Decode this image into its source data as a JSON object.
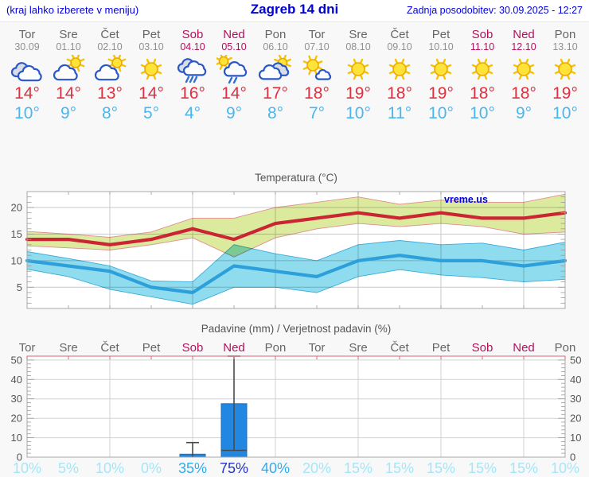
{
  "header": {
    "left_note": "(kraj lahko izberete v meniju)",
    "title": "Zagreb 14 dni",
    "updated": "Zadnja posodobitev: 30.09.2025 - 12:27"
  },
  "colors": {
    "header_blue": "#0000dd",
    "weekend_crimson": "#b0125c",
    "day_gray": "#666666",
    "date_gray": "#909090",
    "tmax_red": "#e22e3e",
    "tmin_blue": "#4ab6ee",
    "axis_text": "#555555",
    "plot_border": "#a8a8a8",
    "grid": "#c9c9c9",
    "precip_grid": "#d2d2d2",
    "precip_top_border": "#e2808e",
    "bar_fill": "#2287e0",
    "bar_edge": "#1a6dc2",
    "whisker": "#4a4a4a",
    "prob_low": "#a3e6f8",
    "prob_medium": "#2fadf0",
    "prob_high": "#2433c8",
    "watermark_blue": "#0000dd"
  },
  "days": [
    {
      "name": "Tor",
      "date": "30.09",
      "weekend": false,
      "icon": "cloudy",
      "tmax": "14°",
      "tmin": "10°",
      "precip_prob": "10%",
      "prob_level": "low"
    },
    {
      "name": "Sre",
      "date": "01.10",
      "weekend": false,
      "icon": "partly-cloudy",
      "tmax": "14°",
      "tmin": "9°",
      "precip_prob": "5%",
      "prob_level": "low"
    },
    {
      "name": "Čet",
      "date": "02.10",
      "weekend": false,
      "icon": "partly-cloudy",
      "tmax": "13°",
      "tmin": "8°",
      "precip_prob": "10%",
      "prob_level": "low"
    },
    {
      "name": "Pet",
      "date": "03.10",
      "weekend": false,
      "icon": "sunny",
      "tmax": "14°",
      "tmin": "5°",
      "precip_prob": "0%",
      "prob_level": "low"
    },
    {
      "name": "Sob",
      "date": "04.10",
      "weekend": true,
      "icon": "rain",
      "tmax": "16°",
      "tmin": "4°",
      "precip_prob": "35%",
      "prob_level": "medium"
    },
    {
      "name": "Ned",
      "date": "05.10",
      "weekend": true,
      "icon": "sun-rain",
      "tmax": "14°",
      "tmin": "9°",
      "precip_prob": "75%",
      "prob_level": "high"
    },
    {
      "name": "Pon",
      "date": "06.10",
      "weekend": false,
      "icon": "cloud-sun",
      "tmax": "17°",
      "tmin": "8°",
      "precip_prob": "40%",
      "prob_level": "medium"
    },
    {
      "name": "Tor",
      "date": "07.10",
      "weekend": false,
      "icon": "mostly-sunny",
      "tmax": "18°",
      "tmin": "7°",
      "precip_prob": "20%",
      "prob_level": "low"
    },
    {
      "name": "Sre",
      "date": "08.10",
      "weekend": false,
      "icon": "sunny",
      "tmax": "19°",
      "tmin": "10°",
      "precip_prob": "15%",
      "prob_level": "low"
    },
    {
      "name": "Čet",
      "date": "09.10",
      "weekend": false,
      "icon": "sunny",
      "tmax": "18°",
      "tmin": "11°",
      "precip_prob": "15%",
      "prob_level": "low"
    },
    {
      "name": "Pet",
      "date": "10.10",
      "weekend": false,
      "icon": "sunny",
      "tmax": "19°",
      "tmin": "10°",
      "precip_prob": "15%",
      "prob_level": "low"
    },
    {
      "name": "Sob",
      "date": "11.10",
      "weekend": true,
      "icon": "sunny",
      "tmax": "18°",
      "tmin": "10°",
      "precip_prob": "15%",
      "prob_level": "low"
    },
    {
      "name": "Ned",
      "date": "12.10",
      "weekend": true,
      "icon": "sunny",
      "tmax": "18°",
      "tmin": "9°",
      "precip_prob": "15%",
      "prob_level": "low"
    },
    {
      "name": "Pon",
      "date": "13.10",
      "weekend": false,
      "icon": "sunny",
      "tmax": "19°",
      "tmin": "10°",
      "precip_prob": "10%",
      "prob_level": "low"
    }
  ],
  "chart_data": [
    {
      "type": "line",
      "title": "Temperatura (°C)",
      "watermark": "vreme.us",
      "x_labels": [
        "Tor",
        "Sre",
        "Čet",
        "Pet",
        "Sob",
        "Ned",
        "Pon",
        "Tor",
        "Sre",
        "Čet",
        "Pet",
        "Sob",
        "Ned",
        "Pon"
      ],
      "ylim": [
        1,
        23
      ],
      "yticks": [
        5,
        10,
        15,
        20
      ],
      "grid": true,
      "series": [
        {
          "name": "max-temperature",
          "color": "#cb2433",
          "values": [
            14,
            14,
            13,
            14,
            16,
            14,
            17,
            18,
            19,
            18,
            19,
            18,
            18,
            19
          ]
        },
        {
          "name": "min-temperature",
          "color": "#2da0dc",
          "values": [
            10,
            9,
            8,
            5,
            4,
            9,
            8,
            7,
            10,
            11,
            10,
            10,
            9,
            10
          ]
        }
      ],
      "bands": [
        {
          "name": "max-range",
          "color": "#dcea9e",
          "edge": "#e08f8f",
          "upper": [
            15.5,
            15,
            14.4,
            15.4,
            18,
            18,
            20,
            21,
            22,
            20.6,
            21.4,
            21,
            21,
            22.5
          ],
          "lower": [
            12.8,
            12.4,
            12,
            13,
            14.3,
            10.7,
            14.3,
            16,
            17,
            16.4,
            17,
            16.4,
            15,
            15.4
          ]
        },
        {
          "name": "min-range",
          "color": "#8fdcee",
          "edge": "#3aabdd",
          "upper": [
            11.7,
            10.4,
            9,
            6.2,
            6,
            13,
            11.3,
            10,
            13,
            13.8,
            13,
            13.3,
            12,
            13.5
          ],
          "lower": [
            8.4,
            7,
            4.6,
            3.2,
            1.8,
            5,
            5,
            4,
            7,
            8.3,
            7.3,
            6.8,
            6,
            6.5
          ]
        }
      ]
    },
    {
      "type": "bar",
      "title": "Padavine (mm) / Verjetnost padavin (%)",
      "categories": [
        "Tor",
        "Sre",
        "Čet",
        "Pet",
        "Sob",
        "Ned",
        "Pon",
        "Tor",
        "Sre",
        "Čet",
        "Pet",
        "Sob",
        "Ned",
        "Pon"
      ],
      "values": [
        0,
        0,
        0,
        0,
        1.5,
        27.5,
        0,
        0,
        0,
        0,
        0,
        0,
        0,
        0
      ],
      "range_low": [
        null,
        null,
        null,
        null,
        null,
        3.5,
        null,
        null,
        null,
        null,
        null,
        null,
        null,
        null
      ],
      "range_high": [
        null,
        null,
        null,
        null,
        7.5,
        52,
        null,
        null,
        null,
        null,
        null,
        null,
        null,
        null
      ],
      "probabilities_pct": [
        10,
        5,
        10,
        0,
        35,
        75,
        40,
        20,
        15,
        15,
        15,
        15,
        15,
        10
      ],
      "ylim": [
        0,
        52
      ],
      "yticks": [
        0,
        10,
        20,
        30,
        40,
        50
      ],
      "grid": true
    }
  ]
}
